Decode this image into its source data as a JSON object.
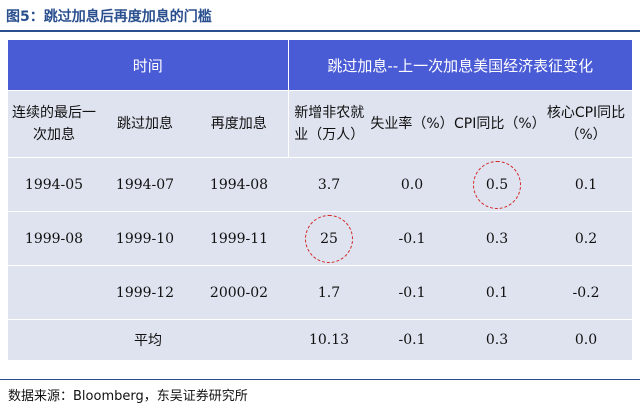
{
  "figure": {
    "title": "图5：跳过加息后再度加息的门槛",
    "source": "数据来源：Bloomberg，东吴证券研究所"
  },
  "table": {
    "group_left": "时间",
    "group_right": "跳过加息--上一次加息美国经济表征变化",
    "columns": [
      "连续的最后一次加息",
      "跳过加息",
      "再度加息",
      "新增非农就业（万人）",
      "失业率（%）",
      "CPI同比（%）",
      "核心CPI同比（%）"
    ],
    "rows": [
      {
        "last_hike": "1994-05",
        "skip": "1994-07",
        "rehike": "1994-08",
        "payrolls": "3.7",
        "unemployment": "0.0",
        "cpi": "0.5",
        "core_cpi": "0.1"
      },
      {
        "last_hike": "1999-08",
        "skip": "1999-10",
        "rehike": "1999-11",
        "payrolls": "25",
        "unemployment": "-0.1",
        "cpi": "0.3",
        "core_cpi": "0.2"
      },
      {
        "last_hike": "",
        "skip": "1999-12",
        "rehike": "2000-02",
        "payrolls": "1.7",
        "unemployment": "-0.1",
        "cpi": "0.1",
        "core_cpi": "-0.2"
      }
    ],
    "average": {
      "label": "平均",
      "payrolls": "10.13",
      "unemployment": "-0.1",
      "cpi": "0.3",
      "core_cpi": "0.0"
    }
  },
  "colors": {
    "header_bg": "#4a5bd6",
    "body_bg": "#dee3ef",
    "title": "#2a4f8f",
    "highlight_circle": "#d32626"
  }
}
